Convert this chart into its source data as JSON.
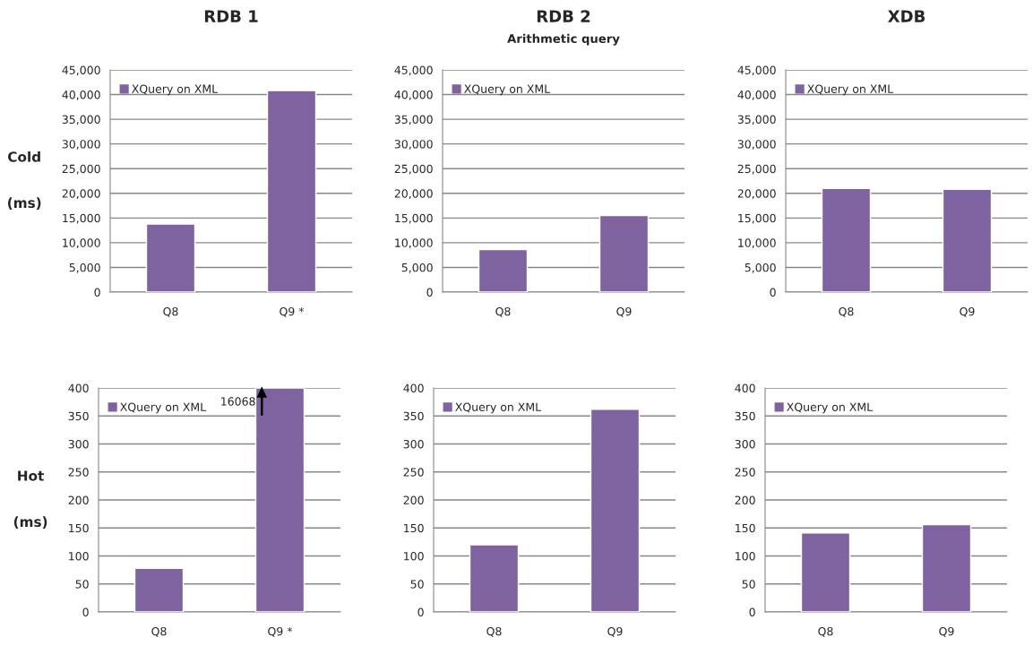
{
  "chart_data": [
    {
      "type": "bar",
      "title": "RDB 1",
      "ylabel": "Cold\n\n\n(ms)",
      "categories": [
        "Q8",
        "Q9 *"
      ],
      "series": [
        {
          "name": "XQuery on XML",
          "color": "#7f62a0",
          "values": [
            13800,
            40800
          ]
        }
      ],
      "ylim": [
        0,
        45000
      ],
      "yticks": [
        {
          "value": 0,
          "label": "0"
        },
        {
          "value": 5000,
          "label": "5,000"
        },
        {
          "value": 10000,
          "label": "10,000"
        },
        {
          "value": 15000,
          "label": "15,000"
        },
        {
          "value": 20000,
          "label": "20,000"
        },
        {
          "value": 25000,
          "label": "25,000"
        },
        {
          "value": 30000,
          "label": "30,000"
        },
        {
          "value": 35000,
          "label": "35,000"
        },
        {
          "value": 40000,
          "label": "40,000"
        },
        {
          "value": 45000,
          "label": "45,000"
        }
      ],
      "grid": "y",
      "legend": "top left"
    },
    {
      "type": "bar",
      "title": "RDB 2",
      "subtitle": "Arithmetic query",
      "categories": [
        "Q8",
        "Q9"
      ],
      "series": [
        {
          "name": "XQuery on XML",
          "color": "#7f62a0",
          "values": [
            8600,
            15500
          ]
        }
      ],
      "ylim": [
        0,
        45000
      ],
      "yticks": [
        {
          "value": 0,
          "label": "0"
        },
        {
          "value": 5000,
          "label": "5,000"
        },
        {
          "value": 10000,
          "label": "10,000"
        },
        {
          "value": 15000,
          "label": "15,000"
        },
        {
          "value": 20000,
          "label": "20,000"
        },
        {
          "value": 25000,
          "label": "25,000"
        },
        {
          "value": 30000,
          "label": "30,000"
        },
        {
          "value": 35000,
          "label": "35,000"
        },
        {
          "value": 40000,
          "label": "40,000"
        },
        {
          "value": 45000,
          "label": "45,000"
        }
      ],
      "grid": "y",
      "legend": "top left"
    },
    {
      "type": "bar",
      "title": "XDB",
      "categories": [
        "Q8",
        "Q9"
      ],
      "series": [
        {
          "name": "XQuery on XML",
          "color": "#7f62a0",
          "values": [
            21000,
            20800
          ]
        }
      ],
      "ylim": [
        0,
        45000
      ],
      "yticks": [
        {
          "value": 0,
          "label": "0"
        },
        {
          "value": 5000,
          "label": "5,000"
        },
        {
          "value": 10000,
          "label": "10,000"
        },
        {
          "value": 15000,
          "label": "15,000"
        },
        {
          "value": 20000,
          "label": "20,000"
        },
        {
          "value": 25000,
          "label": "25,000"
        },
        {
          "value": 30000,
          "label": "30,000"
        },
        {
          "value": 35000,
          "label": "35,000"
        },
        {
          "value": 40000,
          "label": "40,000"
        },
        {
          "value": 45000,
          "label": "45,000"
        }
      ],
      "grid": "y",
      "legend": "top left"
    },
    {
      "type": "bar",
      "ylabel": "Hot\n\n\n(ms)",
      "categories": [
        "Q8",
        "Q9 *"
      ],
      "series": [
        {
          "name": "XQuery on XML",
          "color": "#7f62a0",
          "values": [
            78,
            400
          ]
        }
      ],
      "ylim": [
        0,
        400
      ],
      "yticks": [
        0,
        50,
        100,
        150,
        200,
        250,
        300,
        350,
        400
      ],
      "grid": "y",
      "legend": "top left",
      "annotations": [
        {
          "text": "16068",
          "x": "Q9 *",
          "y": 400
        }
      ]
    },
    {
      "type": "bar",
      "categories": [
        "Q8",
        "Q9"
      ],
      "series": [
        {
          "name": "XQuery on XML",
          "color": "#7f62a0",
          "values": [
            120,
            362
          ]
        }
      ],
      "ylim": [
        0,
        400
      ],
      "yticks": [
        0,
        50,
        100,
        150,
        200,
        250,
        300,
        350,
        400
      ],
      "grid": "y",
      "legend": "top left"
    },
    {
      "type": "bar",
      "categories": [
        "Q8",
        "Q9"
      ],
      "series": [
        {
          "name": "XQuery on XML",
          "color": "#7f62a0",
          "values": [
            141,
            156
          ]
        }
      ],
      "ylim": [
        0,
        400
      ],
      "yticks": [
        0,
        50,
        100,
        150,
        200,
        250,
        300,
        350,
        400
      ],
      "grid": "y",
      "legend": "top left"
    }
  ]
}
